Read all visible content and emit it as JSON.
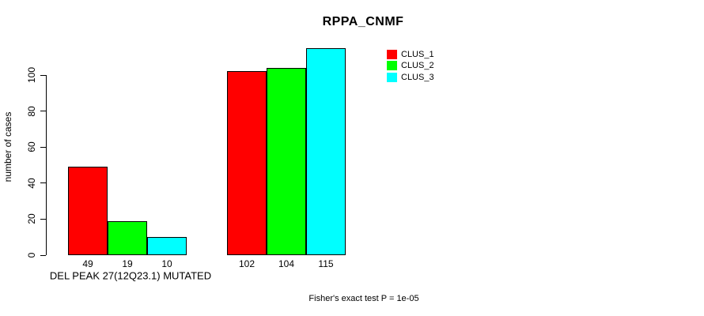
{
  "chart_data": {
    "type": "bar",
    "title": "RPPA_CNMF",
    "ylabel": "number of cases",
    "xlabel": "",
    "categories": [
      "DEL PEAK 27(12Q23.1) MUTATED",
      ""
    ],
    "series": [
      {
        "name": "CLUS_1",
        "color": "#ff0000",
        "values": [
          49,
          102
        ]
      },
      {
        "name": "CLUS_2",
        "color": "#00ff00",
        "values": [
          19,
          104
        ]
      },
      {
        "name": "CLUS_3",
        "color": "#00ffff",
        "values": [
          10,
          115
        ]
      }
    ],
    "bar_value_labels": [
      [
        "49",
        "19",
        "10"
      ],
      [
        "102",
        "104",
        "115"
      ]
    ],
    "yticks": [
      0,
      20,
      40,
      60,
      80,
      100
    ],
    "ylim": [
      0,
      115
    ],
    "grid": false,
    "legend": {
      "position": "top-right",
      "entries": [
        "CLUS_1",
        "CLUS_2",
        "CLUS_3"
      ]
    },
    "annotation": "Fisher's exact test P = 1e-05",
    "bar_border_color": "#000000",
    "axis_color": "#000000"
  }
}
